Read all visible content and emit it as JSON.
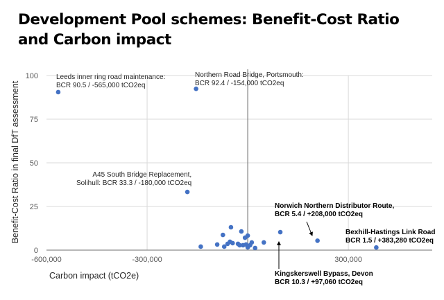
{
  "title": "Development Pool schemes: Benefit-Cost Ratio and Carbon impact",
  "chart_data": {
    "type": "scatter",
    "title": "Development Pool schemes: Benefit-Cost Ratio and Carbon impact",
    "xlabel": "Carbon impact (tCO2e)",
    "ylabel": "Benefit-Cost Ratio in final DfT assessment",
    "xlim": [
      -600000,
      550000
    ],
    "ylim": [
      0,
      100
    ],
    "x_ticks": [
      -600000,
      -300000,
      0,
      300000
    ],
    "x_tick_labels": [
      "-600,000",
      "-300,000",
      "0",
      "300,000"
    ],
    "y_ticks": [
      0,
      25,
      50,
      75,
      100
    ],
    "y_tick_labels": [
      "0",
      "25",
      "50",
      "75",
      "100"
    ],
    "grid": true,
    "marker_color": "#4472C4",
    "points": [
      {
        "x": -565000,
        "y": 90.5
      },
      {
        "x": -154000,
        "y": 92.4
      },
      {
        "x": -180000,
        "y": 33.3
      },
      {
        "x": 208000,
        "y": 5.4
      },
      {
        "x": 383280,
        "y": 1.5
      },
      {
        "x": 97060,
        "y": 10.3
      },
      {
        "x": -140000,
        "y": 2.0
      },
      {
        "x": -91000,
        "y": 3.2
      },
      {
        "x": -74000,
        "y": 8.7
      },
      {
        "x": -50000,
        "y": 13.1
      },
      {
        "x": -70000,
        "y": 2.0
      },
      {
        "x": -60000,
        "y": 3.6
      },
      {
        "x": -53000,
        "y": 4.8
      },
      {
        "x": -45000,
        "y": 4.0
      },
      {
        "x": -29000,
        "y": 3.6
      },
      {
        "x": -19000,
        "y": 10.7
      },
      {
        "x": -24000,
        "y": 2.8
      },
      {
        "x": -14000,
        "y": 2.8
      },
      {
        "x": -8000,
        "y": 7.1
      },
      {
        "x": 0,
        "y": 8.3
      },
      {
        "x": 7000,
        "y": 2.8
      },
      {
        "x": 12000,
        "y": 4.4
      },
      {
        "x": 22000,
        "y": 1.2
      },
      {
        "x": 48000,
        "y": 4.4
      },
      {
        "x": 0,
        "y": 1.6
      },
      {
        "x": -5000,
        "y": 3.2
      }
    ],
    "annotations": [
      {
        "lines": [
          "Leeds inner ring road maintenance:",
          "BCR 90.5 / -565,000 tCO2eq"
        ]
      },
      {
        "lines": [
          "Northern Road Bridge, Portsmouth:",
          "BCR 92.4 / -154,000 tCO2eq"
        ]
      },
      {
        "lines": [
          "A45 South Bridge Replacement,",
          "Solihull:  BCR 33.3 / -180,000 tCO2eq"
        ]
      },
      {
        "lines": [
          "Norwich Northern Distributor Route,",
          "BCR 5.4 / +208,000 tCO2eq"
        ]
      },
      {
        "lines": [
          "Bexhill-Hastings Link Road",
          "BCR 1.5 / +383,280 tCO2eq"
        ]
      },
      {
        "lines": [
          "Kingskerswell Bypass, Devon",
          "BCR 10.3 / +97,060 tCO2eq"
        ]
      }
    ]
  }
}
